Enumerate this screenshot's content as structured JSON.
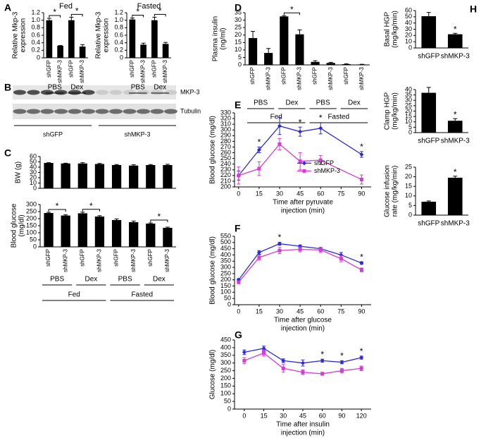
{
  "chart_data": [
    {
      "type": "bar",
      "panel": "A",
      "title": "Fed",
      "ylabel": [
        "Relative Mkp-3",
        "expression"
      ],
      "categories": [
        "shGFP",
        "shMKP-3",
        "shGFP",
        "shMKP-3"
      ],
      "groups": [
        "PBS",
        "Dex"
      ],
      "values": [
        1.0,
        0.32,
        1.0,
        0.3
      ],
      "errors": [
        0.05,
        0.01,
        0.08,
        0.05
      ],
      "color": "#000000",
      "ylim": [
        0,
        1.2
      ],
      "yticks": [
        0,
        0.2,
        0.4,
        0.6,
        0.8,
        {
          "value": 1,
          "label": "1.0"
        },
        1.2
      ],
      "annotations": [
        {
          "label": "*",
          "bars": [
            0,
            1
          ]
        },
        {
          "label": "*",
          "bars": [
            2,
            3
          ]
        }
      ]
    },
    {
      "type": "bar",
      "title": "Fasted",
      "ylabel": [
        "Relative Mkp-3",
        "expression"
      ],
      "categories": [
        "shGFP",
        "shMKP-3",
        "shGFP",
        "shMKP-3"
      ],
      "groups": [
        "PBS",
        "Dex"
      ],
      "values": [
        1.02,
        0.35,
        1.0,
        0.37
      ],
      "errors": [
        0.04,
        0.04,
        0.08,
        0.04
      ],
      "color": "#000000",
      "ylim": [
        0,
        1.2
      ],
      "yticks": [
        0,
        0.2,
        0.4,
        0.6,
        0.8,
        {
          "value": 1,
          "label": "1.0"
        },
        1.2
      ],
      "annotations": [
        {
          "label": "*",
          "bars": [
            0,
            1
          ]
        },
        {
          "label": "*",
          "bars": [
            2,
            3
          ]
        }
      ]
    },
    {
      "type": "bar",
      "panel": "C",
      "ylabel": [
        "BW (g)"
      ],
      "values": [
        48,
        47,
        47,
        46,
        44,
        43,
        44,
        44
      ],
      "errors": [
        0.5,
        0.5,
        1.5,
        1,
        1,
        1.5,
        1,
        1.5
      ],
      "color": "#000000",
      "ylim": [
        0,
        60
      ],
      "yticks": [
        0,
        10,
        20,
        30,
        40,
        50,
        60
      ]
    },
    {
      "type": "bar",
      "ylabel": [
        "Blood glucose",
        "(mg/dl)"
      ],
      "categories": [
        "shGFP",
        "shMKP-3",
        "shGFP",
        "shMKP-3",
        "shGFP",
        "shMKP-3",
        "shGFP",
        "shMKP-3"
      ],
      "groups": [
        "PBS",
        "Dex",
        "PBS",
        "Dex"
      ],
      "supergroups": [
        "Fed",
        "Fasted"
      ],
      "values": [
        240,
        222,
        238,
        215,
        190,
        175,
        165,
        135
      ],
      "errors": [
        5,
        5,
        8,
        6,
        8,
        8,
        5,
        5
      ],
      "color": "#000000",
      "ylim": [
        0,
        300
      ],
      "yticks": [
        0,
        50,
        100,
        150,
        200,
        250,
        300
      ],
      "annotations": [
        {
          "label": "*",
          "bars": [
            0,
            1
          ]
        },
        {
          "label": "*",
          "bars": [
            2,
            3
          ]
        },
        {
          "label": "*",
          "bars": [
            6,
            7
          ]
        }
      ]
    },
    {
      "type": "bar",
      "panel": "D",
      "ylabel": [
        "Plasma insulin",
        "(ng/ml)"
      ],
      "categories": [
        "shGFP",
        "shMKP-3",
        "shGFP",
        "shMKP-3",
        "shGFP",
        "shMKP-3",
        "shGFP",
        "shMKP-3"
      ],
      "groups": [
        "PBS",
        "Dex",
        "PBS",
        "Dex"
      ],
      "supergroups": [
        "Fed",
        "Fasted"
      ],
      "values": [
        18,
        8,
        32.5,
        20.5,
        2,
        1.3,
        0.5,
        0.3
      ],
      "errors": [
        4.5,
        3,
        0.5,
        3,
        0.8,
        0.4,
        0.2,
        0.1
      ],
      "color": "#000000",
      "ylim": [
        0,
        35
      ],
      "yticks": [
        0,
        5,
        10,
        15,
        20,
        25,
        30,
        35
      ],
      "annotations": [
        {
          "label": "*",
          "bars": [
            2,
            3
          ]
        }
      ]
    },
    {
      "type": "line",
      "panel": "E",
      "ylabel": [
        "Blood glucose (mg/dl)"
      ],
      "xlabel": [
        "Time after pyruvate",
        "injection (min)"
      ],
      "x": [
        0,
        15,
        30,
        45,
        60,
        90
      ],
      "xlim": [
        -3,
        97
      ],
      "xticks": [
        0,
        15,
        30,
        45,
        60,
        75,
        90
      ],
      "ylim": [
        200,
        330
      ],
      "yticks": [
        200,
        210,
        220,
        230,
        240,
        250,
        260,
        270,
        280,
        290,
        300,
        310,
        320,
        330
      ],
      "series": [
        {
          "name": "shGFP",
          "color": "#2b2bd6",
          "values": [
            220,
            265,
            307,
            297,
            303,
            257
          ],
          "errors": [
            8,
            5,
            15,
            8,
            10,
            5
          ]
        },
        {
          "name": "shMKP-3",
          "color": "#d43cd4",
          "values": [
            220,
            232,
            275,
            245,
            247,
            213
          ],
          "errors": [
            15,
            12,
            10,
            15,
            8,
            8
          ]
        }
      ],
      "legend": "right",
      "annotations": [
        {
          "label": "*",
          "x": 15
        },
        {
          "label": "*",
          "x": 45
        },
        {
          "label": "*",
          "x": 60
        },
        {
          "label": "*",
          "x": 90
        }
      ]
    },
    {
      "type": "line",
      "panel": "F",
      "ylabel": [
        "Blood glucose (mg/dl)"
      ],
      "xlabel": [
        "Time after glucose",
        "injection (min)"
      ],
      "x": [
        0,
        15,
        30,
        45,
        60,
        75,
        90
      ],
      "xlim": [
        -3,
        97
      ],
      "xticks": [
        0,
        15,
        30,
        45,
        60,
        75,
        90
      ],
      "ylim": [
        0,
        550
      ],
      "yticks": [
        0,
        50,
        100,
        150,
        200,
        250,
        300,
        350,
        400,
        450,
        500,
        550
      ],
      "series": [
        {
          "name": "shGFP",
          "color": "#2b2bd6",
          "values": [
            200,
            420,
            490,
            470,
            450,
            400,
            335
          ],
          "errors": [
            10,
            15,
            12,
            10,
            10,
            20,
            10
          ]
        },
        {
          "name": "shMKP-3",
          "color": "#d43cd4",
          "values": [
            180,
            380,
            435,
            445,
            440,
            370,
            280
          ],
          "errors": [
            10,
            20,
            25,
            20,
            20,
            25,
            15
          ]
        }
      ],
      "annotations": [
        {
          "label": "*",
          "x": 30
        },
        {
          "label": "*",
          "x": 90
        }
      ]
    },
    {
      "type": "line",
      "panel": "G",
      "ylabel": [
        "Glucose (mg/dl)"
      ],
      "xlabel": [
        "Time after insulin",
        "injection (min)"
      ],
      "categories": [
        "0",
        "15",
        "30",
        "45",
        "60",
        "90",
        "120"
      ],
      "ylim": [
        0,
        450
      ],
      "yticks": [
        0,
        50,
        100,
        150,
        200,
        250,
        300,
        350,
        400,
        450
      ],
      "series": [
        {
          "name": "shGFP",
          "color": "#2b2bd6",
          "values": [
            370,
            395,
            315,
            300,
            315,
            305,
            335
          ],
          "errors": [
            15,
            15,
            12,
            20,
            10,
            10,
            10
          ]
        },
        {
          "name": "shMKP-3",
          "color": "#d43cd4",
          "values": [
            315,
            365,
            265,
            240,
            230,
            250,
            265
          ],
          "errors": [
            20,
            20,
            25,
            15,
            10,
            15,
            15
          ]
        }
      ],
      "annotations": [
        {
          "label": "*",
          "category": 4
        },
        {
          "label": "*",
          "category": 5
        },
        {
          "label": "*",
          "category": 6
        }
      ]
    },
    {
      "type": "bar",
      "panel": "H",
      "ylabel": [
        "Basal HGP",
        "(mg/kg/min)"
      ],
      "categories": [
        "shGFP",
        "shMKP-3"
      ],
      "values": [
        51,
        22
      ],
      "errors": [
        6,
        1.5
      ],
      "color": "#000000",
      "ylim": [
        0,
        60
      ],
      "yticks": [
        0,
        10,
        20,
        30,
        40,
        50,
        60
      ],
      "annotations": [
        {
          "label": "*",
          "category": 1
        }
      ]
    },
    {
      "type": "bar",
      "ylabel": [
        "Clamp HGP",
        "(mg/kg/min)"
      ],
      "categories": [
        "shGFP",
        "shMKP-3"
      ],
      "values": [
        37,
        11
      ],
      "errors": [
        5,
        2
      ],
      "color": "#000000",
      "ylim": [
        0,
        40
      ],
      "yticks": [
        0,
        5,
        10,
        15,
        20,
        25,
        30,
        35,
        40
      ],
      "annotations": [
        {
          "label": "*",
          "category": 1
        }
      ]
    },
    {
      "type": "bar",
      "ylabel": [
        "Glucose  infusion",
        "rate (mg/kg/min)"
      ],
      "categories": [
        "shGFP",
        "shMKP-3"
      ],
      "values": [
        7,
        19.5
      ],
      "errors": [
        0.4,
        0.8
      ],
      "color": "#000000",
      "ylim": [
        0,
        25
      ],
      "yticks": [
        0,
        5,
        10,
        15,
        20,
        25
      ],
      "annotations": [
        {
          "label": "*",
          "category": 1
        }
      ]
    }
  ],
  "blot": {
    "panel": "B",
    "bands": [
      "MKP-3",
      "Tubulin"
    ],
    "groups": [
      "shGFP",
      "shMKP-3"
    ]
  }
}
